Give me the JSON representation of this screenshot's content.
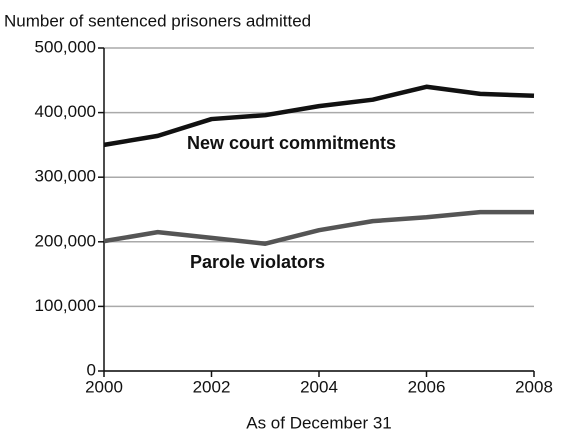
{
  "chart_data": {
    "type": "line",
    "title": "Number of sentenced prisoners admitted",
    "x_label": "As of December 31",
    "x": [
      2000,
      2001,
      2002,
      2003,
      2004,
      2005,
      2006,
      2007,
      2008
    ],
    "series": [
      {
        "name": "New court commitments",
        "color": "#111111",
        "values": [
          350000,
          364000,
          390000,
          396000,
          410000,
          420000,
          440000,
          429000,
          426000
        ]
      },
      {
        "name": "Parole violators",
        "color": "#555555",
        "values": [
          201000,
          215000,
          206000,
          197000,
          218000,
          232000,
          238000,
          246000,
          246000
        ]
      }
    ],
    "xlim": [
      2000,
      2008
    ],
    "xticks": [
      2000,
      2002,
      2004,
      2006,
      2008
    ],
    "ylim": [
      0,
      500000
    ],
    "yticks": [
      0,
      {
        "value": 100000,
        "label": "100,000"
      },
      {
        "value": 200000,
        "label": "200,000"
      },
      {
        "value": 300000,
        "label": "300,000"
      },
      {
        "value": 400000,
        "label": "400,000"
      },
      {
        "value": 500000,
        "label": "500,000"
      }
    ],
    "grid": true
  }
}
